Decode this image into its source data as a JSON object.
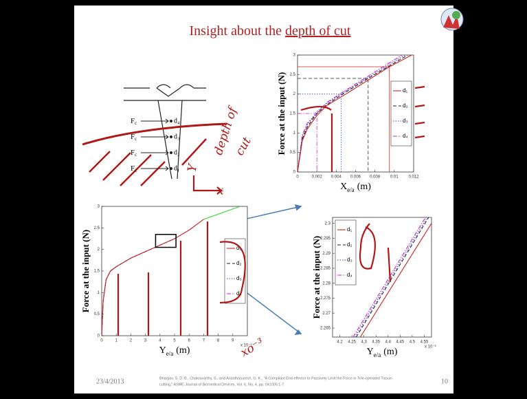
{
  "slide": {
    "title": [
      "Insight about the",
      "depth of cut"
    ],
    "date": "23/4/2013",
    "page": "10",
    "citation": [
      "Bhargav, S. D. B., Chakravarthy, S., and Ananthasuresh, G. K., \"A Compliant End-effector to Passively Limit the Force in Tele-operated Tissue-",
      "cutting,\" ASME Journal of Biomedical Devices, Vol. 6, No. 4, pp. 041005:1-7."
    ],
    "annotations": [
      "depth of",
      "cut",
      "Y",
      "x",
      "xo⁻³"
    ]
  },
  "diagram": {
    "force": "F",
    "force_sub": "c",
    "depths": [
      "d₄",
      "d₃",
      "d₂",
      "d₁"
    ]
  },
  "chart_data": [
    {
      "type": "line",
      "y_label": "Force at the input (N)",
      "x_label": [
        "X",
        "e/a",
        "(m)"
      ],
      "xlim": [
        0,
        0.012
      ],
      "xticks": [
        0,
        0.002,
        0.004,
        0.006,
        0.008,
        0.01,
        0.012
      ],
      "ylim": [
        0,
        3
      ],
      "yticks": [
        0,
        0.5,
        1,
        1.5,
        2,
        2.5,
        3
      ],
      "legend": "right",
      "series": [
        {
          "name": "d₁",
          "color": "#cc2222",
          "dash": "solid",
          "x": [
            0,
            0.0005,
            0.001,
            0.002,
            0.003,
            0.005,
            0.0095,
            0.0118
          ],
          "values": [
            0,
            0.8,
            1.1,
            1.45,
            1.7,
            2.0,
            2.7,
            3.0
          ],
          "marker_x": 0.0095,
          "marker_y": 2.7
        },
        {
          "name": "d₂",
          "color": "#222222",
          "dash": "dashed",
          "x": [
            0,
            0.0005,
            0.001,
            0.002,
            0.003,
            0.005,
            0.0073,
            0.0114
          ],
          "values": [
            0,
            0.85,
            1.15,
            1.5,
            1.72,
            2.05,
            2.4,
            3.0
          ],
          "marker_x": 0.0073,
          "marker_y": 2.4
        },
        {
          "name": "d₃",
          "color": "#3344cc",
          "dash": "dotted",
          "x": [
            0,
            0.0005,
            0.001,
            0.002,
            0.003,
            0.0045,
            0.0111
          ],
          "values": [
            0,
            0.9,
            1.2,
            1.55,
            1.75,
            2.0,
            3.0
          ],
          "marker_x": 0.0045,
          "marker_y": 2.0
        },
        {
          "name": "d₄",
          "color": "#cc22cc",
          "dash": "dashdot",
          "x": [
            0,
            0.0005,
            0.001,
            0.002,
            0.003,
            0.005,
            0.0108
          ],
          "values": [
            0,
            0.95,
            1.25,
            1.5,
            1.78,
            2.1,
            3.0
          ],
          "marker_x": 0.002,
          "marker_y": 1.5
        }
      ]
    },
    {
      "type": "line",
      "y_label": "Force at the input (N)",
      "x_label": [
        "Y",
        "e/a",
        "(m)"
      ],
      "x_multiplier": "x 10⁻³",
      "xlim": [
        0,
        10
      ],
      "xticks": [
        0,
        1,
        2,
        3,
        4,
        5,
        6,
        7,
        8,
        9
      ],
      "ylim": [
        0,
        3
      ],
      "yticks": [
        0,
        0.5,
        1,
        1.5,
        2,
        2.5,
        3
      ],
      "legend": "right",
      "series": [
        {
          "name": "d₁",
          "color": "#cc2222",
          "dash": "solid",
          "x": [
            0,
            0.1,
            0.3,
            0.6,
            1,
            2,
            3,
            4,
            5,
            6,
            7
          ],
          "values": [
            0,
            0.8,
            1.3,
            1.5,
            1.6,
            1.8,
            1.95,
            2.1,
            2.25,
            2.45,
            2.7
          ]
        },
        {
          "name": "d₂",
          "color": "#222222",
          "dash": "dashed",
          "x": [
            0,
            0.1,
            0.3,
            0.6,
            1,
            2,
            3,
            4,
            5
          ],
          "values": [
            0,
            0.8,
            1.3,
            1.5,
            1.6,
            1.8,
            1.95,
            2.1,
            2.25
          ]
        },
        {
          "name": "d₃",
          "color": "#3344cc",
          "dash": "dotted",
          "x": [
            0,
            0.1,
            0.3,
            0.6,
            1,
            2,
            3
          ],
          "values": [
            0,
            0.8,
            1.3,
            1.5,
            1.6,
            1.8,
            1.95
          ]
        },
        {
          "name": "d₄",
          "color": "#cc22cc",
          "dash": "dashdot",
          "x": [
            0,
            0.1,
            0.3,
            0.6,
            1
          ],
          "values": [
            0,
            0.8,
            1.3,
            1.5,
            1.6
          ]
        },
        {
          "color": "#33dd33",
          "dash": "solid",
          "x": [
            7,
            9.5
          ],
          "values": [
            2.7,
            3.0
          ]
        }
      ],
      "zoom_box": {
        "x": [
          3.7,
          5.1
        ],
        "y": [
          2.05,
          2.35
        ]
      }
    },
    {
      "type": "line",
      "y_label": "Force at the input (N)",
      "x_label": [
        "Y",
        "e/a",
        "(m)"
      ],
      "x_multiplier": "x 10⁻³",
      "xlim": [
        4.17,
        4.58
      ],
      "xticks": [
        4.2,
        4.25,
        4.3,
        4.35,
        4.4,
        4.45,
        4.5,
        4.55
      ],
      "ylim": [
        2.262,
        2.302
      ],
      "yticks": [
        2.265,
        2.27,
        2.275,
        2.28,
        2.285,
        2.29,
        2.295,
        2.3
      ],
      "legend": "upper left",
      "series": [
        {
          "name": "d₁",
          "color": "#cc2222",
          "dash": "solid",
          "x": [
            4.285,
            4.58
          ],
          "values": [
            2.262,
            2.3
          ]
        },
        {
          "name": "d₂",
          "color": "#222222",
          "dash": "dashed",
          "x": [
            4.268,
            4.568
          ],
          "values": [
            2.262,
            2.302
          ]
        },
        {
          "name": "d₃",
          "color": "#3344cc",
          "dash": "dotted",
          "x": [
            4.262,
            4.562
          ],
          "values": [
            2.262,
            2.302
          ]
        },
        {
          "name": "d₄",
          "color": "#cc22cc",
          "dash": "dashdot",
          "x": [
            4.255,
            4.555
          ],
          "values": [
            2.262,
            2.302
          ]
        }
      ]
    }
  ]
}
